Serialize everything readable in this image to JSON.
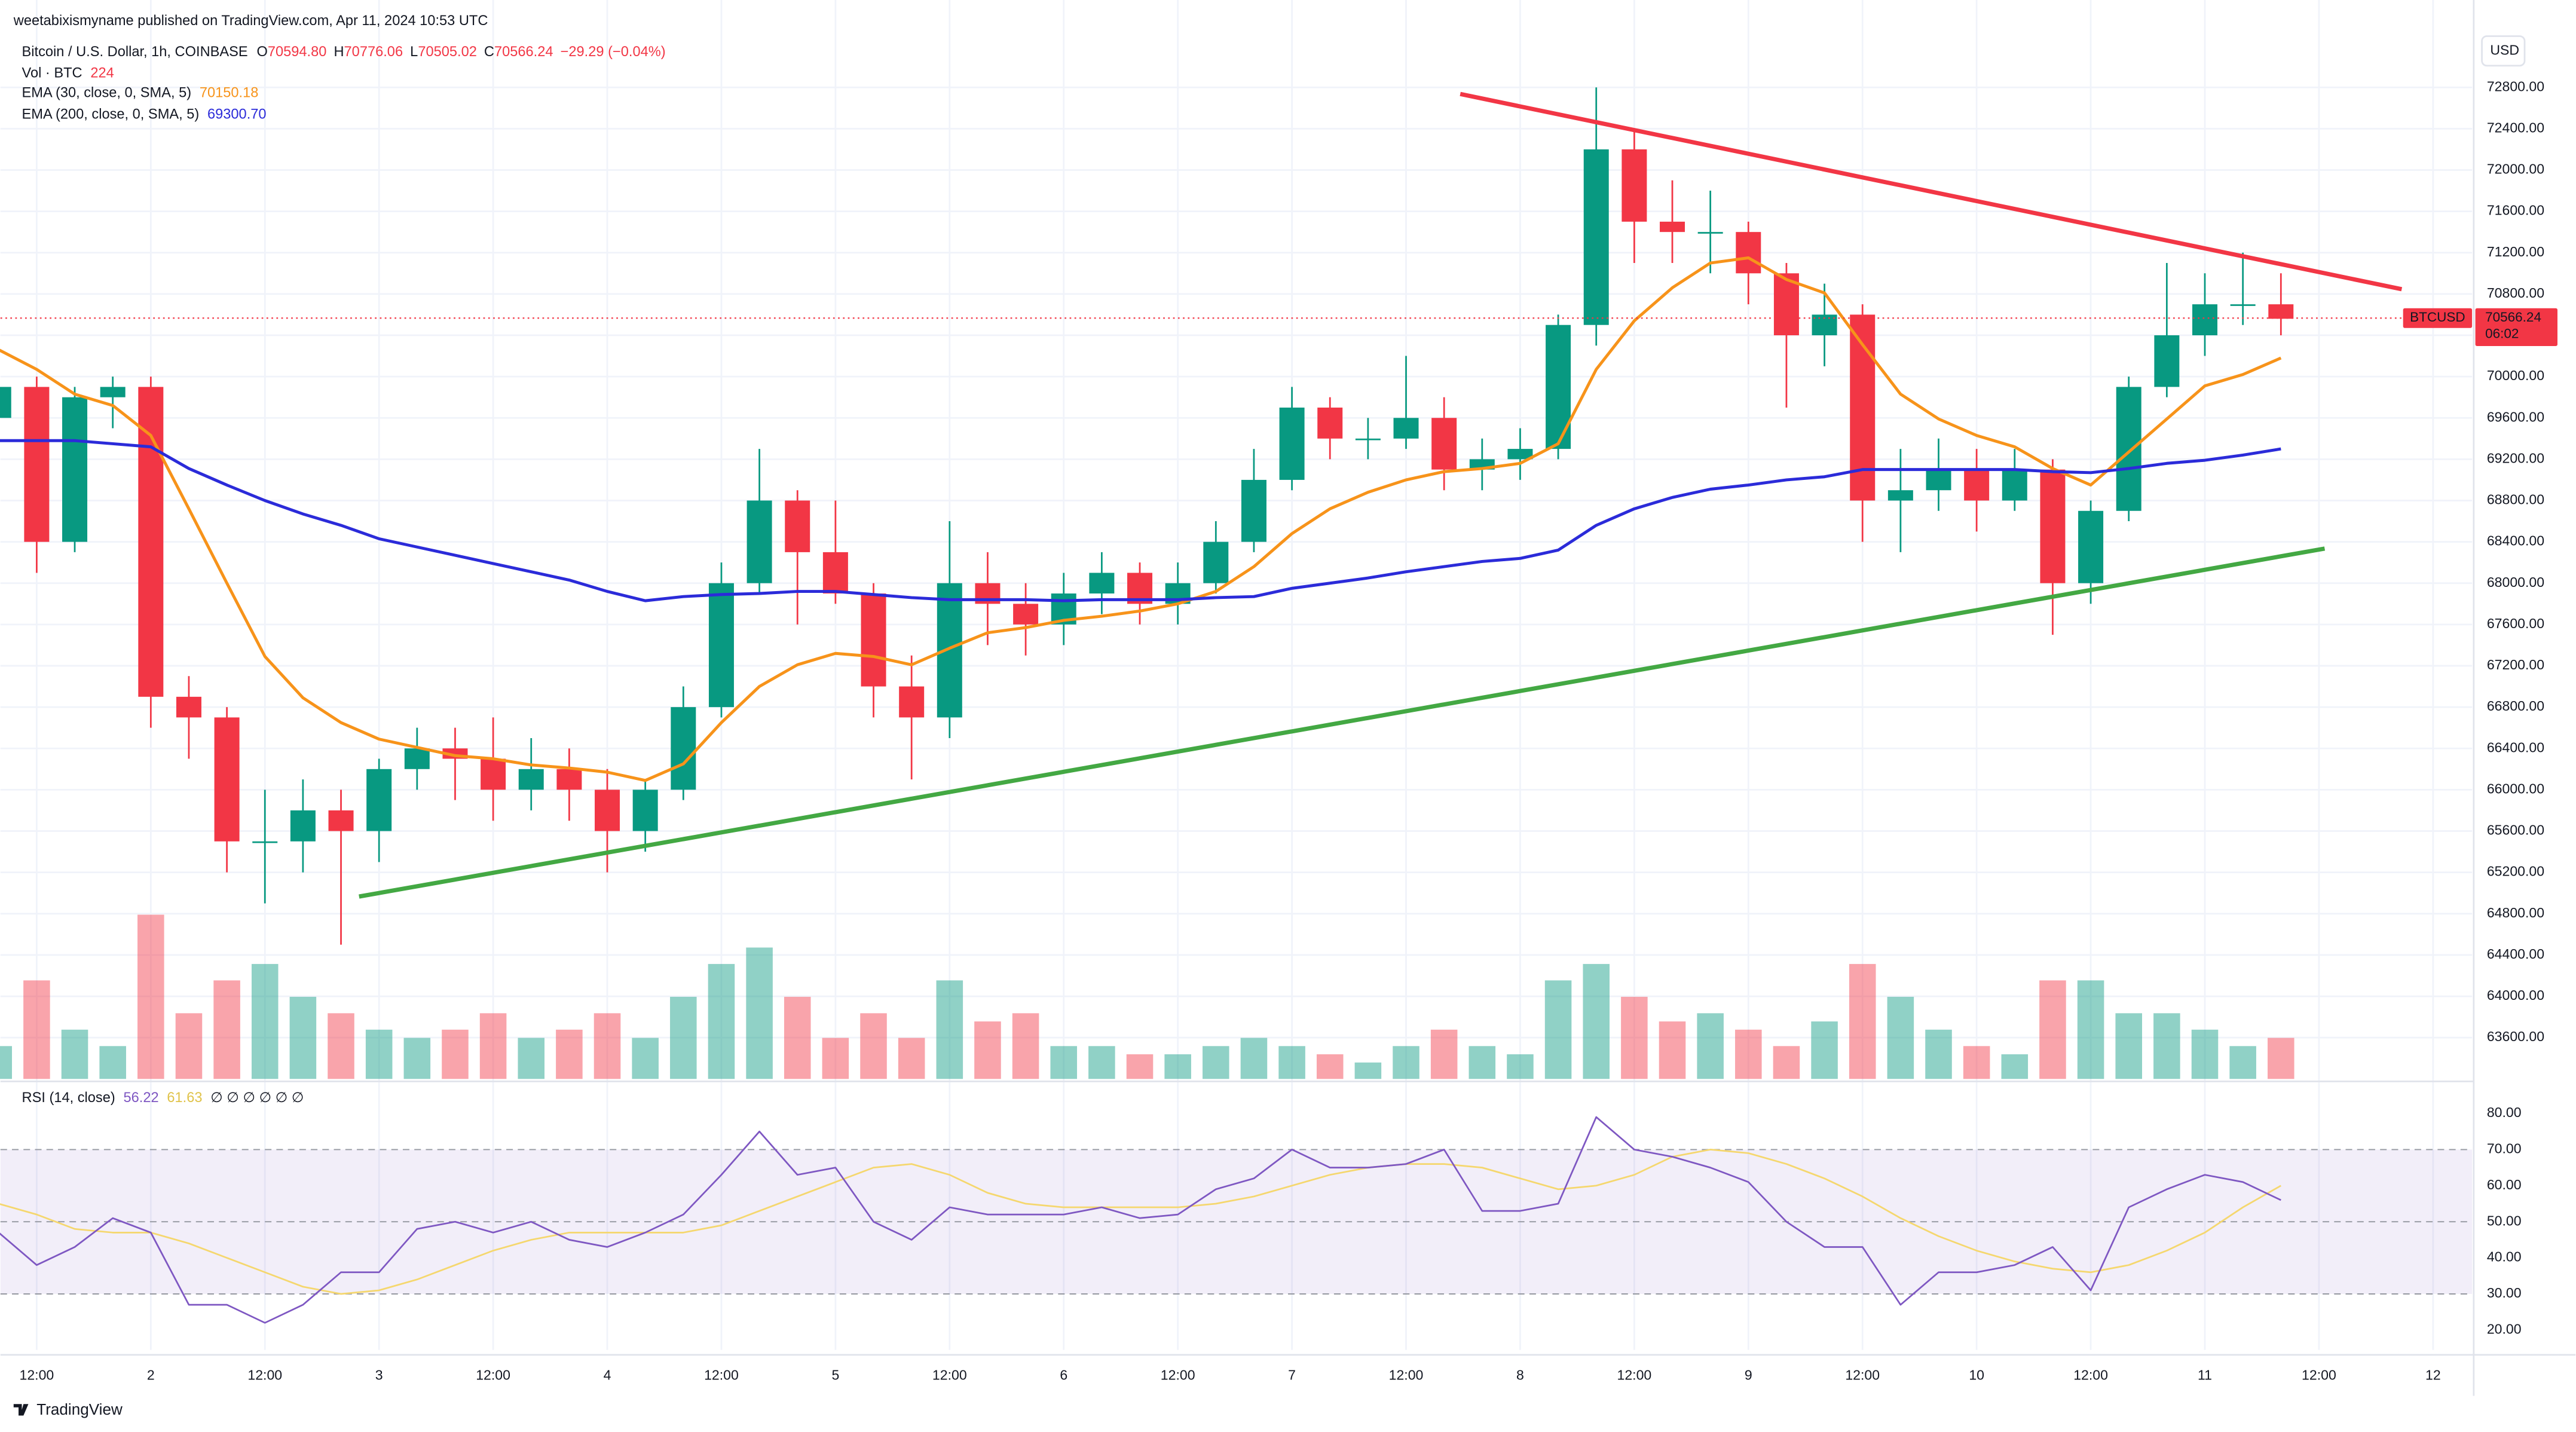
{
  "header": {
    "published": "weetabixismyname published on TradingView.com, Apr 11, 2024 10:53 UTC",
    "symbol": "Bitcoin / U.S. Dollar, 1h, COINBASE",
    "ohlc": [
      {
        "key": "O",
        "value": "70594.80"
      },
      {
        "key": "H",
        "value": "70776.06"
      },
      {
        "key": "L",
        "value": "70505.02"
      },
      {
        "key": "C",
        "value": "70566.24"
      }
    ],
    "change": "−29.29 (−0.04%)",
    "vol_label": "Vol · BTC",
    "vol_value": "224",
    "ema30_label": "EMA (30, close, 0, SMA, 5)",
    "ema30_value": "70150.18",
    "ema200_label": "EMA (200, close, 0, SMA, 5)",
    "ema200_value": "69300.70",
    "rsi_label": "RSI (14, close)",
    "rsi_value": "56.22",
    "rsi_ma_value": "61.63",
    "rsi_extra": "∅ ∅ ∅ ∅ ∅ ∅",
    "currency": "USD",
    "price_tag": "BTCUSD",
    "countdown": "06:02",
    "footer": "TradingView"
  },
  "chart_data": {
    "type": "candlestick",
    "up_color": "#089981",
    "down_color": "#f23645",
    "ema30_color": "#f7931a",
    "ema200_color": "#2b2bd9",
    "rsi_color": "#7e57c2",
    "rsi_ma_color": "#f5d76e",
    "x": [
      8,
      12,
      16,
      20,
      24,
      28,
      32,
      36,
      40,
      44,
      48,
      52,
      56,
      60,
      64,
      68,
      72,
      76,
      80,
      84,
      88,
      92,
      96,
      100,
      104,
      108,
      112,
      116,
      120,
      124,
      128,
      132,
      136,
      140,
      144,
      148,
      152,
      156,
      160,
      164,
      168,
      172,
      176,
      180,
      184,
      188,
      192,
      196,
      200,
      204,
      208,
      212,
      216,
      220,
      224,
      228,
      232,
      236,
      240,
      244,
      248
    ],
    "open": [
      69600,
      69900,
      68400,
      69800,
      69900,
      66900,
      66700,
      65500,
      65500,
      65800,
      65600,
      66200,
      66400,
      66300,
      66000,
      66200,
      66000,
      65600,
      66000,
      66800,
      68000,
      68800,
      68300,
      67900,
      67000,
      66700,
      68000,
      67800,
      67600,
      67900,
      68100,
      67800,
      68000,
      68400,
      69000,
      69700,
      69400,
      69400,
      69600,
      69100,
      69200,
      69300,
      70500,
      72200,
      71500,
      71400,
      71400,
      71000,
      70400,
      70600,
      68800,
      68900,
      69100,
      68800,
      69100,
      68000,
      68700,
      69900,
      70400,
      70700,
      70700
    ],
    "high": [
      70000,
      70000,
      69900,
      70000,
      70000,
      67100,
      66800,
      66000,
      66100,
      66000,
      66300,
      66600,
      66600,
      66700,
      66500,
      66400,
      66200,
      66100,
      67000,
      68200,
      69300,
      68900,
      68800,
      68000,
      67300,
      68600,
      68300,
      68000,
      68100,
      68300,
      68200,
      68200,
      68600,
      69300,
      69900,
      69800,
      69600,
      70200,
      69800,
      69400,
      69500,
      70600,
      72800,
      72400,
      71900,
      71800,
      71500,
      71100,
      70900,
      70700,
      69300,
      69400,
      69300,
      69300,
      69200,
      68800,
      70000,
      71100,
      71000,
      71200,
      71000
    ],
    "low": [
      69500,
      68100,
      68300,
      69500,
      66600,
      66300,
      65200,
      64900,
      65200,
      64500,
      65300,
      66000,
      65900,
      65700,
      65800,
      65700,
      65200,
      65400,
      65900,
      66700,
      67900,
      67600,
      67800,
      66700,
      66100,
      66500,
      67400,
      67300,
      67400,
      67700,
      67600,
      67600,
      67900,
      68300,
      68900,
      69200,
      69200,
      69300,
      68900,
      68900,
      69000,
      69200,
      70300,
      71100,
      71100,
      71000,
      70700,
      69700,
      70100,
      68400,
      68300,
      68700,
      68500,
      68700,
      67500,
      67800,
      68600,
      69800,
      70200,
      70500,
      70400
    ],
    "close": [
      69900,
      68400,
      69800,
      69900,
      66900,
      66700,
      65500,
      65500,
      65800,
      65600,
      66200,
      66400,
      66300,
      66000,
      66200,
      66000,
      65600,
      66000,
      66800,
      68000,
      68800,
      68300,
      67900,
      67000,
      66700,
      68000,
      67800,
      67600,
      67900,
      68100,
      67800,
      68000,
      68400,
      69000,
      69700,
      69400,
      69400,
      69600,
      69100,
      69200,
      69300,
      70500,
      72200,
      71500,
      71400,
      71400,
      71000,
      70400,
      70600,
      68800,
      68900,
      69100,
      68800,
      69100,
      68000,
      68700,
      69900,
      70400,
      70700,
      70700,
      70560
    ],
    "volume": [
      160,
      480,
      240,
      160,
      800,
      320,
      480,
      560,
      400,
      320,
      240,
      200,
      240,
      320,
      200,
      240,
      320,
      200,
      400,
      560,
      640,
      400,
      200,
      320,
      200,
      480,
      280,
      320,
      160,
      160,
      120,
      120,
      160,
      200,
      160,
      120,
      80,
      160,
      240,
      160,
      120,
      480,
      560,
      400,
      280,
      320,
      240,
      160,
      280,
      560,
      400,
      240,
      160,
      120,
      480,
      480,
      320,
      320,
      240,
      160,
      200
    ],
    "ema30": [
      70260,
      70070,
      69830,
      69720,
      69430,
      68720,
      68000,
      67290,
      66890,
      66650,
      66490,
      66410,
      66330,
      66300,
      66240,
      66210,
      66170,
      66090,
      66250,
      66650,
      67000,
      67210,
      67320,
      67290,
      67210,
      67370,
      67520,
      67570,
      67640,
      67680,
      67730,
      67800,
      67920,
      68160,
      68480,
      68720,
      68880,
      69000,
      69080,
      69110,
      69160,
      69350,
      70070,
      70540,
      70860,
      71100,
      71150,
      70940,
      70810,
      70310,
      69830,
      69590,
      69430,
      69320,
      69110,
      68950,
      69270,
      69590,
      69910,
      70020,
      70180
    ],
    "ema200": [
      69380,
      69380,
      69380,
      69350,
      69320,
      69110,
      68950,
      68800,
      68670,
      68560,
      68430,
      68350,
      68270,
      68190,
      68110,
      68030,
      67920,
      67830,
      67870,
      67890,
      67900,
      67920,
      67920,
      67890,
      67860,
      67840,
      67840,
      67840,
      67830,
      67840,
      67840,
      67840,
      67860,
      67870,
      67950,
      68000,
      68050,
      68110,
      68160,
      68210,
      68240,
      68320,
      68560,
      68720,
      68830,
      68910,
      68950,
      69000,
      69030,
      69100,
      69100,
      69100,
      69100,
      69100,
      69080,
      69070,
      69110,
      69160,
      69190,
      69240,
      69300
    ],
    "rsi": [
      47,
      38,
      43,
      51,
      47,
      27,
      27,
      22,
      27,
      36,
      36,
      48,
      50,
      47,
      50,
      45,
      43,
      47,
      52,
      63,
      75,
      63,
      65,
      50,
      45,
      54,
      52,
      52,
      52,
      54,
      51,
      52,
      59,
      62,
      70,
      65,
      65,
      66,
      70,
      53,
      53,
      55,
      79,
      70,
      68,
      65,
      61,
      50,
      43,
      43,
      27,
      36,
      36,
      38,
      43,
      31,
      54,
      59,
      63,
      61,
      56
    ],
    "rsi_ma": [
      55,
      52,
      48,
      47,
      47,
      44,
      40,
      36,
      32,
      30,
      31,
      34,
      38,
      42,
      45,
      47,
      47,
      47,
      47,
      49,
      53,
      57,
      61,
      65,
      66,
      63,
      58,
      55,
      54,
      54,
      54,
      54,
      55,
      57,
      60,
      63,
      65,
      66,
      66,
      65,
      62,
      59,
      60,
      63,
      68,
      70,
      69,
      66,
      62,
      57,
      51,
      46,
      42,
      39,
      37,
      36,
      38,
      42,
      47,
      54,
      60
    ],
    "trendlines": [
      {
        "color": "#f23645",
        "x": [
          161.7,
          260.7
        ],
        "values": [
          72736,
          70846
        ]
      },
      {
        "color": "#43a843",
        "x": [
          45.9,
          252.6
        ],
        "values": [
          64966,
          68335
        ]
      }
    ],
    "last_price": {
      "value": 70566.24,
      "label": "70566.24"
    },
    "xlim": [
      9.4,
      268.1
    ],
    "xticks": [
      {
        "value": 12,
        "label": "12:00"
      },
      {
        "value": 24,
        "label": "2"
      },
      {
        "value": 36,
        "label": "12:00"
      },
      {
        "value": 48,
        "label": "3"
      },
      {
        "value": 60,
        "label": "12:00"
      },
      {
        "value": 72,
        "label": "4"
      },
      {
        "value": 84,
        "label": "12:00"
      },
      {
        "value": 96,
        "label": "5"
      },
      {
        "value": 108,
        "label": "12:00"
      },
      {
        "value": 120,
        "label": "6"
      },
      {
        "value": 132,
        "label": "12:00"
      },
      {
        "value": 144,
        "label": "7"
      },
      {
        "value": 156,
        "label": "12:00"
      },
      {
        "value": 168,
        "label": "8"
      },
      {
        "value": 180,
        "label": "12:00"
      },
      {
        "value": 192,
        "label": "9"
      },
      {
        "value": 204,
        "label": "12:00"
      },
      {
        "value": 216,
        "label": "10"
      },
      {
        "value": 228,
        "label": "12:00"
      },
      {
        "value": 240,
        "label": "11"
      },
      {
        "value": 252,
        "label": "12:00"
      },
      {
        "value": 264,
        "label": "12"
      }
    ],
    "ylim": [
      63200,
      73360
    ],
    "yticks": [
      {
        "value": 63600,
        "label": "63600.00"
      },
      {
        "value": 64000,
        "label": "64000.00"
      },
      {
        "value": 64400,
        "label": "64400.00"
      },
      {
        "value": 64800,
        "label": "64800.00"
      },
      {
        "value": 65200,
        "label": "65200.00"
      },
      {
        "value": 65600,
        "label": "65600.00"
      },
      {
        "value": 66000,
        "label": "66000.00"
      },
      {
        "value": 66400,
        "label": "66400.00"
      },
      {
        "value": 66800,
        "label": "66800.00"
      },
      {
        "value": 67200,
        "label": "67200.00"
      },
      {
        "value": 67600,
        "label": "67600.00"
      },
      {
        "value": 68000,
        "label": "68000.00"
      },
      {
        "value": 68400,
        "label": "68400.00"
      },
      {
        "value": 68800,
        "label": "68800.00"
      },
      {
        "value": 69200,
        "label": "69200.00"
      },
      {
        "value": 69600,
        "label": "69600.00"
      },
      {
        "value": 70000,
        "label": "70000.00"
      },
      {
        "value": 70400,
        "label": "70400.00"
      },
      {
        "value": 70800,
        "label": "70800.00"
      },
      {
        "value": 71200,
        "label": "71200.00"
      },
      {
        "value": 71600,
        "label": "71600.00"
      },
      {
        "value": 72000,
        "label": "72000.00"
      },
      {
        "value": 72400,
        "label": "72400.00"
      },
      {
        "value": 72800,
        "label": "72800.00"
      }
    ],
    "volume_ylim": [
      0,
      1400
    ],
    "rsi_ylim": [
      14.5,
      88.2
    ],
    "rsi_yticks": [
      {
        "value": 20,
        "label": "20.00"
      },
      {
        "value": 30,
        "label": "30.00"
      },
      {
        "value": 40,
        "label": "40.00"
      },
      {
        "value": 50,
        "label": "50.00"
      },
      {
        "value": 60,
        "label": "60.00"
      },
      {
        "value": 70,
        "label": "70.00"
      },
      {
        "value": 80,
        "label": "80.00"
      }
    ],
    "rsi_bands": [
      70,
      50,
      30
    ],
    "grid": true
  }
}
